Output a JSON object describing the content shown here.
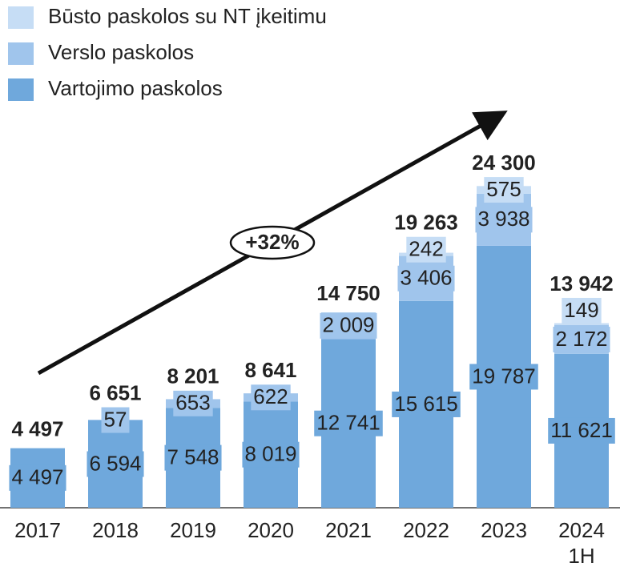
{
  "chart_data": {
    "type": "stacked_bar",
    "categories": [
      "2017",
      "2018",
      "2019",
      "2020",
      "2021",
      "2022",
      "2023",
      "2024 1H"
    ],
    "series": [
      {
        "name": "Vartojimo paskolos",
        "color": "#6fa8dc",
        "values": [
          4497,
          6594,
          7548,
          8019,
          12741,
          15615,
          19787,
          11621
        ],
        "value_labels": [
          "4 497",
          "6 594",
          "7 548",
          "8 019",
          "12 741",
          "15 615",
          "19 787",
          "11 621"
        ]
      },
      {
        "name": "Verslo paskolos",
        "color": "#a0c5ec",
        "values": [
          null,
          57,
          653,
          622,
          2009,
          3406,
          3938,
          2172
        ],
        "value_labels": [
          null,
          "57",
          "653",
          "622",
          "2 009",
          "3 406",
          "3 938",
          "2 172"
        ]
      },
      {
        "name": "Būsto paskolos su NT įkeitimu",
        "color": "#c6ddf5",
        "values": [
          null,
          null,
          null,
          null,
          null,
          242,
          575,
          149
        ],
        "value_labels": [
          null,
          null,
          null,
          null,
          null,
          "242",
          "575",
          "149"
        ]
      }
    ],
    "totals": [
      4497,
      6651,
      8201,
      8641,
      14750,
      19263,
      24300,
      13942
    ],
    "total_labels": [
      "4 497",
      "6 651",
      "8 201",
      "8 641",
      "14 750",
      "19 263",
      "24 300",
      "13 942"
    ],
    "annotation": "+32%"
  }
}
